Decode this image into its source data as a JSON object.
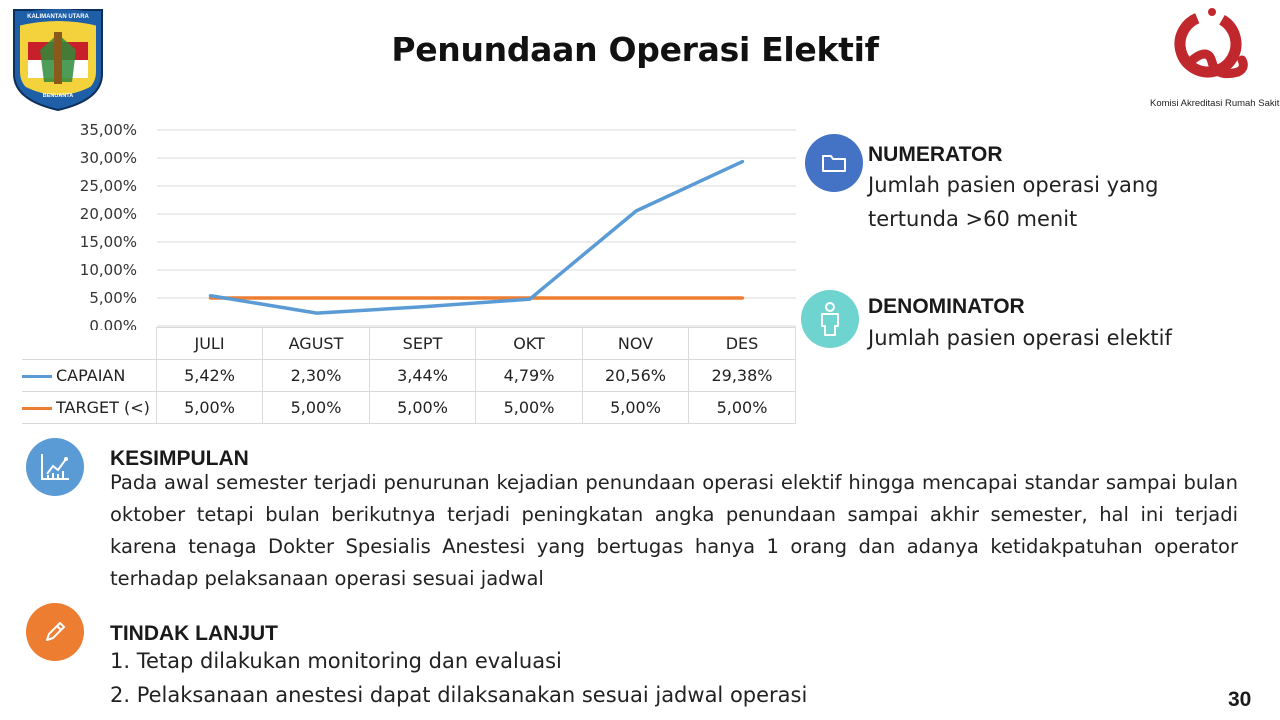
{
  "page": {
    "title": "Penundaan Operasi Elektif",
    "page_number": "30"
  },
  "logos": {
    "left_icon": "kalimantan-utara-crest",
    "left_banner_top": "KALIMANTAN UTARA",
    "left_banner_bottom": "BENUANTA",
    "right_icon": "kars-q-logo",
    "right_caption": "Komisi Akreditasi Rumah Sakit"
  },
  "chart_data": {
    "type": "line",
    "categories": [
      "JULI",
      "AGUST",
      "SEPT",
      "OKT",
      "NOV",
      "DES"
    ],
    "series": [
      {
        "name": "CAPAIAN",
        "values": [
          5.42,
          2.3,
          3.44,
          4.79,
          20.56,
          29.38
        ],
        "labels": [
          "5,42%",
          "2,30%",
          "3,44%",
          "4,79%",
          "20,56%",
          "29,38%"
        ],
        "color": "#5B9BD5"
      },
      {
        "name": "TARGET (<)",
        "values": [
          5.0,
          5.0,
          5.0,
          5.0,
          5.0,
          5.0
        ],
        "labels": [
          "5,00%",
          "5,00%",
          "5,00%",
          "5,00%",
          "5,00%",
          "5,00%"
        ],
        "color": "#ED7D31"
      }
    ],
    "ylim": [
      0,
      35
    ],
    "yticks": [
      {
        "value": 0,
        "label": "0,00%"
      },
      {
        "value": 5,
        "label": "5,00%"
      },
      {
        "value": 10,
        "label": "10,00%"
      },
      {
        "value": 15,
        "label": "15,00%"
      },
      {
        "value": 20,
        "label": "20,00%"
      },
      {
        "value": 25,
        "label": "25,00%"
      },
      {
        "value": 30,
        "label": "30,00%"
      },
      {
        "value": 35,
        "label": "35,00%"
      }
    ],
    "grid": true,
    "legend": "data-table"
  },
  "numerator": {
    "icon": "folder-icon",
    "color": "#4472C4",
    "heading": "NUMERATOR",
    "line1": "Jumlah pasien operasi yang",
    "line2": "tertunda >60 menit"
  },
  "denominator": {
    "icon": "person-icon",
    "color": "#6FD3CF",
    "heading": "DENOMINATOR",
    "line1": "Jumlah pasien operasi elektif"
  },
  "kesimpulan": {
    "icon": "chart-growth-icon",
    "color": "#5B9BD5",
    "heading": "KESIMPULAN",
    "text": "Pada awal semester terjadi penurunan kejadian penundaan operasi elektif hingga mencapai standar sampai bulan oktober tetapi bulan berikutnya terjadi peningkatan angka penundaan sampai akhir semester, hal ini terjadi karena tenaga Dokter Spesialis Anestesi yang bertugas hanya 1 orang dan adanya ketidakpatuhan operator terhadap pelaksanaan operasi sesuai jadwal"
  },
  "tindak_lanjut": {
    "icon": "pencil-icon",
    "color": "#ED7D31",
    "heading": "TINDAK LANJUT",
    "items": [
      "1.  Tetap dilakukan monitoring dan evaluasi",
      "2.  Pelaksanaan anestesi dapat dilaksanakan sesuai jadwal operasi"
    ]
  }
}
